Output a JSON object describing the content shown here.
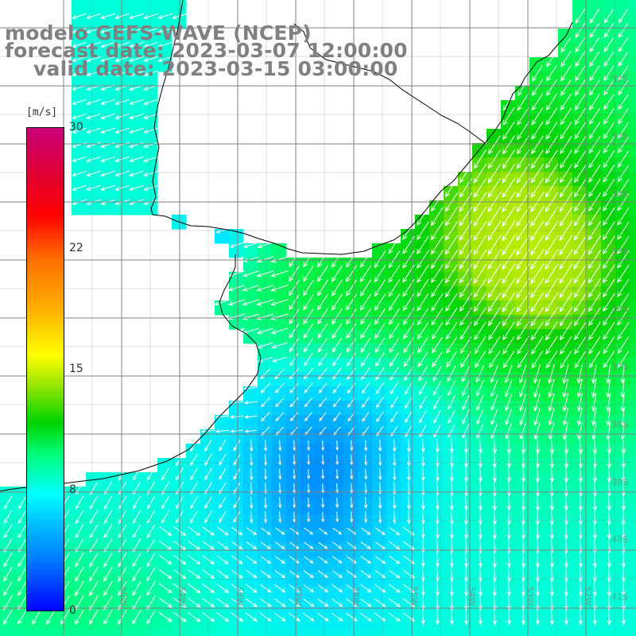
{
  "header": {
    "title": "modelo GEFS-WAVE (NCEP)",
    "forecast": "forecast date: 2023-03-07 12:00:00",
    "valid": "valid date: 2023-03-15 03:00:00"
  },
  "legend": {
    "unit": "[m/s]",
    "ticks": [
      "30",
      "22",
      "15",
      "8",
      "0"
    ],
    "colors": [
      "#0000ff",
      "#0080ff",
      "#00ffff",
      "#00ff80",
      "#00d400",
      "#ffff00",
      "#ff6e00",
      "#ff0000",
      "#c8007a"
    ]
  },
  "map": {
    "lat_labels": [
      "32S",
      "33S",
      "34S",
      "35S",
      "36S",
      "37S",
      "38S",
      "39S",
      "40S",
      "41S"
    ],
    "lon_labels": [
      "60W",
      "59W",
      "58W",
      "57W",
      "56W",
      "55W",
      "54W",
      "53W",
      "52W"
    ],
    "land_color": "#ffffff",
    "coast_color": "#000000",
    "grid_color": "#808080",
    "arrow_color": "#ffffff"
  }
}
